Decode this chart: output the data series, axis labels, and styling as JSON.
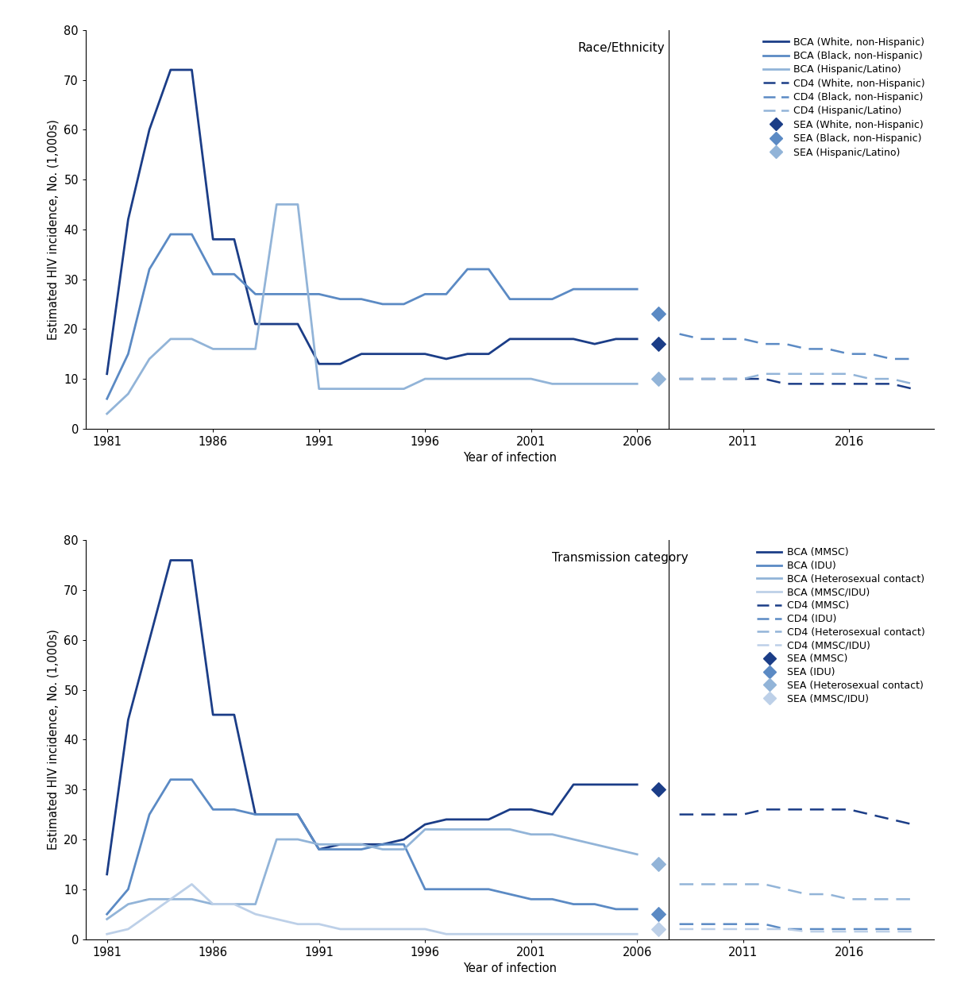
{
  "top_panel": {
    "title": "Race/Ethnicity",
    "bca_white": {
      "years": [
        1981,
        1982,
        1983,
        1984,
        1985,
        1986,
        1987,
        1988,
        1989,
        1990,
        1991,
        1992,
        1993,
        1994,
        1995,
        1996,
        1997,
        1998,
        1999,
        2000,
        2001,
        2002,
        2003,
        2004,
        2005,
        2006
      ],
      "values": [
        11,
        42,
        60,
        72,
        72,
        38,
        38,
        21,
        21,
        21,
        13,
        13,
        15,
        15,
        15,
        15,
        14,
        15,
        15,
        18,
        18,
        18,
        18,
        17,
        18,
        18
      ]
    },
    "bca_black": {
      "years": [
        1981,
        1982,
        1983,
        1984,
        1985,
        1986,
        1987,
        1988,
        1989,
        1990,
        1991,
        1992,
        1993,
        1994,
        1995,
        1996,
        1997,
        1998,
        1999,
        2000,
        2001,
        2002,
        2003,
        2004,
        2005,
        2006
      ],
      "values": [
        6,
        15,
        32,
        39,
        39,
        31,
        31,
        27,
        27,
        27,
        27,
        26,
        26,
        25,
        25,
        27,
        27,
        32,
        32,
        26,
        26,
        26,
        28,
        28,
        28,
        28
      ]
    },
    "bca_hispanic": {
      "years": [
        1981,
        1982,
        1983,
        1984,
        1985,
        1986,
        1987,
        1988,
        1989,
        1990,
        1991,
        1992,
        1993,
        1994,
        1995,
        1996,
        1997,
        1998,
        1999,
        2000,
        2001,
        2002,
        2003,
        2004,
        2005,
        2006
      ],
      "values": [
        3,
        7,
        14,
        18,
        18,
        16,
        16,
        16,
        45,
        45,
        8,
        8,
        8,
        8,
        8,
        10,
        10,
        10,
        10,
        10,
        10,
        9,
        9,
        9,
        9,
        9
      ]
    },
    "sea_white": {
      "year": 2007,
      "value": 17
    },
    "sea_black": {
      "year": 2007,
      "value": 23
    },
    "sea_hispanic": {
      "year": 2007,
      "value": 10
    },
    "cd4_white": {
      "years": [
        2008,
        2009,
        2010,
        2011,
        2012,
        2013,
        2014,
        2015,
        2016,
        2017,
        2018,
        2019
      ],
      "values": [
        10,
        10,
        10,
        10,
        10,
        9,
        9,
        9,
        9,
        9,
        9,
        8
      ]
    },
    "cd4_black": {
      "years": [
        2008,
        2009,
        2010,
        2011,
        2012,
        2013,
        2014,
        2015,
        2016,
        2017,
        2018,
        2019
      ],
      "values": [
        19,
        18,
        18,
        18,
        17,
        17,
        16,
        16,
        15,
        15,
        14,
        14
      ]
    },
    "cd4_hispanic": {
      "years": [
        2008,
        2009,
        2010,
        2011,
        2012,
        2013,
        2014,
        2015,
        2016,
        2017,
        2018,
        2019
      ],
      "values": [
        10,
        10,
        10,
        10,
        11,
        11,
        11,
        11,
        11,
        10,
        10,
        9
      ]
    }
  },
  "bottom_panel": {
    "title": "Transmission category",
    "bca_mmsc": {
      "years": [
        1981,
        1982,
        1983,
        1984,
        1985,
        1986,
        1987,
        1988,
        1989,
        1990,
        1991,
        1992,
        1993,
        1994,
        1995,
        1996,
        1997,
        1998,
        1999,
        2000,
        2001,
        2002,
        2003,
        2004,
        2005,
        2006
      ],
      "values": [
        13,
        44,
        60,
        76,
        76,
        45,
        45,
        25,
        25,
        25,
        18,
        19,
        19,
        19,
        20,
        23,
        24,
        24,
        24,
        26,
        26,
        25,
        31,
        31,
        31,
        31
      ]
    },
    "bca_idu": {
      "years": [
        1981,
        1982,
        1983,
        1984,
        1985,
        1986,
        1987,
        1988,
        1989,
        1990,
        1991,
        1992,
        1993,
        1994,
        1995,
        1996,
        1997,
        1998,
        1999,
        2000,
        2001,
        2002,
        2003,
        2004,
        2005,
        2006
      ],
      "values": [
        5,
        10,
        25,
        32,
        32,
        26,
        26,
        25,
        25,
        25,
        18,
        18,
        18,
        19,
        19,
        10,
        10,
        10,
        10,
        9,
        8,
        8,
        7,
        7,
        6,
        6
      ]
    },
    "bca_hetero": {
      "years": [
        1981,
        1982,
        1983,
        1984,
        1985,
        1986,
        1987,
        1988,
        1989,
        1990,
        1991,
        1992,
        1993,
        1994,
        1995,
        1996,
        1997,
        1998,
        1999,
        2000,
        2001,
        2002,
        2003,
        2004,
        2005,
        2006
      ],
      "values": [
        4,
        7,
        8,
        8,
        8,
        7,
        7,
        7,
        20,
        20,
        19,
        19,
        19,
        18,
        18,
        22,
        22,
        22,
        22,
        22,
        21,
        21,
        20,
        19,
        18,
        17
      ]
    },
    "bca_mmscidu": {
      "years": [
        1981,
        1982,
        1983,
        1984,
        1985,
        1986,
        1987,
        1988,
        1989,
        1990,
        1991,
        1992,
        1993,
        1994,
        1995,
        1996,
        1997,
        1998,
        1999,
        2000,
        2001,
        2002,
        2003,
        2004,
        2005,
        2006
      ],
      "values": [
        1,
        2,
        5,
        8,
        11,
        7,
        7,
        5,
        4,
        3,
        3,
        2,
        2,
        2,
        2,
        2,
        1,
        1,
        1,
        1,
        1,
        1,
        1,
        1,
        1,
        1
      ]
    },
    "sea_mmsc": {
      "year": 2007,
      "value": 30
    },
    "sea_idu": {
      "year": 2007,
      "value": 5
    },
    "sea_hetero": {
      "year": 2007,
      "value": 15
    },
    "sea_mmscidu": {
      "year": 2007,
      "value": 2
    },
    "cd4_mmsc": {
      "years": [
        2008,
        2009,
        2010,
        2011,
        2012,
        2013,
        2014,
        2015,
        2016,
        2017,
        2018,
        2019
      ],
      "values": [
        25,
        25,
        25,
        25,
        26,
        26,
        26,
        26,
        26,
        25,
        24,
        23
      ]
    },
    "cd4_idu": {
      "years": [
        2008,
        2009,
        2010,
        2011,
        2012,
        2013,
        2014,
        2015,
        2016,
        2017,
        2018,
        2019
      ],
      "values": [
        3,
        3,
        3,
        3,
        3,
        2,
        2,
        2,
        2,
        2,
        2,
        2
      ]
    },
    "cd4_hetero": {
      "years": [
        2008,
        2009,
        2010,
        2011,
        2012,
        2013,
        2014,
        2015,
        2016,
        2017,
        2018,
        2019
      ],
      "values": [
        11,
        11,
        11,
        11,
        11,
        10,
        9,
        9,
        8,
        8,
        8,
        8
      ]
    },
    "cd4_mmscidu": {
      "years": [
        2008,
        2009,
        2010,
        2011,
        2012,
        2013,
        2014,
        2015,
        2016,
        2017,
        2018,
        2019
      ],
      "values": [
        2,
        2,
        2,
        2,
        2,
        2,
        1.5,
        1.5,
        1.5,
        1.5,
        1.5,
        1.5
      ]
    }
  },
  "colors": {
    "dark_blue": "#1b3d87",
    "mid_blue": "#5b8ac4",
    "light_blue": "#92b4d8",
    "very_light_blue": "#bdd0e8"
  },
  "ylabel": "Estimated HIV incidence, No. (1,000s)",
  "xlabel": "Year of infection",
  "ylim": [
    0,
    80
  ],
  "yticks": [
    0,
    10,
    20,
    30,
    40,
    50,
    60,
    70,
    80
  ],
  "xticks": [
    1981,
    1986,
    1991,
    1996,
    2001,
    2006,
    2011,
    2016
  ],
  "xlim": [
    1980,
    2020
  ],
  "divider_x": 2007.5
}
